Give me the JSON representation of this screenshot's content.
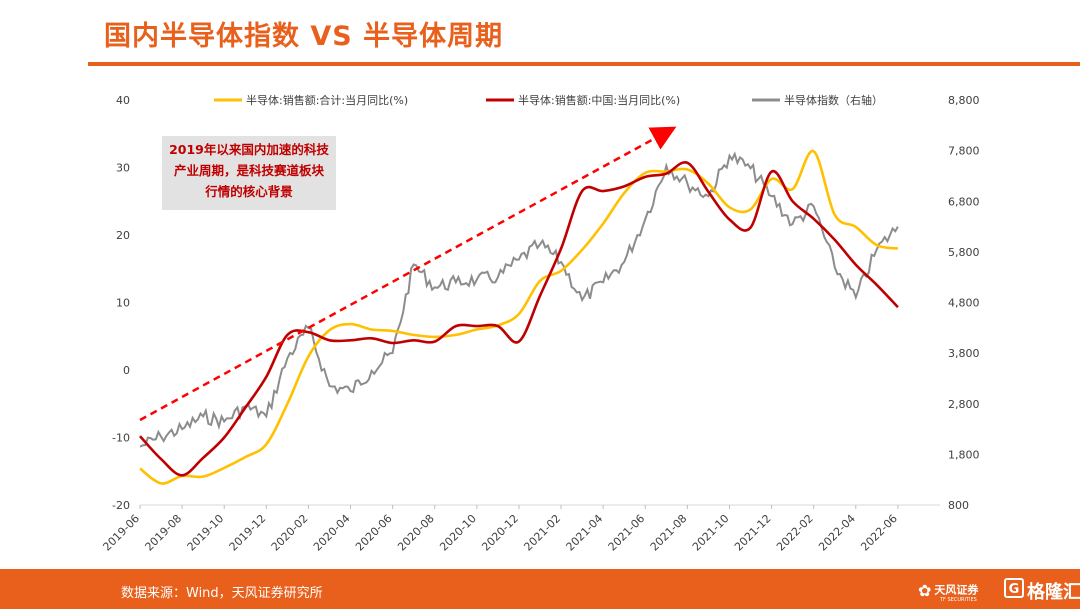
{
  "header": {
    "title": "国内半导体指数 VS 半导体周期"
  },
  "annotation": {
    "lines": [
      "2019年以来国内加速的科技",
      "产业周期，是科技赛道板块",
      "行情的核心背景"
    ]
  },
  "footer": {
    "source": "数据来源：Wind，天风证券研究所",
    "logo_tf": "天风证券",
    "logo_tf_sub": "TF SECURITIES",
    "logo_glh": "格隆汇"
  },
  "colors": {
    "brand": "#e8601c",
    "yellow_series": "#ffc000",
    "red_series": "#c00000",
    "gray_series": "#8c8c8c",
    "arrow": "#ff0000"
  },
  "chart_data": {
    "type": "line",
    "x_ticks": [
      "2019-06",
      "2019-08",
      "2019-10",
      "2019-12",
      "2020-02",
      "2020-04",
      "2020-06",
      "2020-08",
      "2020-10",
      "2020-12",
      "2021-02",
      "2021-04",
      "2021-06",
      "2021-08",
      "2021-10",
      "2021-12",
      "2022-02",
      "2022-04",
      "2022-06"
    ],
    "y_left": {
      "ticks": [
        40,
        30,
        20,
        10,
        0,
        -10,
        -20
      ],
      "range": [
        -20,
        40
      ]
    },
    "y_right": {
      "ticks": [
        "8,800",
        "7,800",
        "6,800",
        "5,800",
        "4,800",
        "3,800",
        "2,800",
        "1,800",
        "800"
      ],
      "range": [
        800,
        8800
      ]
    },
    "legend_position": "top",
    "series": [
      {
        "name": "半导体:销售额:合计:当月同比(%)",
        "axis": "left",
        "color": "#ffc000",
        "points": [
          [
            "2019-06",
            -14.6
          ],
          [
            "2019-07",
            -16.8
          ],
          [
            "2019-08",
            -15.7
          ],
          [
            "2019-09",
            -15.8
          ],
          [
            "2019-10",
            -14.5
          ],
          [
            "2019-11",
            -12.9
          ],
          [
            "2019-12",
            -11.0
          ],
          [
            "2020-01",
            -5.0
          ],
          [
            "2020-02",
            2.0
          ],
          [
            "2020-03",
            5.9
          ],
          [
            "2020-04",
            6.8
          ],
          [
            "2020-05",
            6.0
          ],
          [
            "2020-06",
            5.8
          ],
          [
            "2020-07",
            5.2
          ],
          [
            "2020-08",
            4.9
          ],
          [
            "2020-09",
            5.2
          ],
          [
            "2020-10",
            6.0
          ],
          [
            "2020-11",
            6.6
          ],
          [
            "2020-12",
            8.3
          ],
          [
            "2021-01",
            13.2
          ],
          [
            "2021-02",
            14.7
          ],
          [
            "2021-03",
            17.8
          ],
          [
            "2021-04",
            21.7
          ],
          [
            "2021-05",
            26.2
          ],
          [
            "2021-06",
            29.2
          ],
          [
            "2021-07",
            29.4
          ],
          [
            "2021-08",
            29.7
          ],
          [
            "2021-09",
            27.6
          ],
          [
            "2021-10",
            24.1
          ],
          [
            "2021-11",
            23.8
          ],
          [
            "2021-12",
            28.3
          ],
          [
            "2022-01",
            26.8
          ],
          [
            "2022-02",
            32.4
          ],
          [
            "2022-03",
            23.0
          ],
          [
            "2022-04",
            21.2
          ],
          [
            "2022-05",
            18.5
          ],
          [
            "2022-06",
            18.0
          ]
        ]
      },
      {
        "name": "半导体:销售额:中国:当月同比(%)",
        "axis": "left",
        "color": "#c00000",
        "points": [
          [
            "2019-06",
            -9.8
          ],
          [
            "2019-07",
            -13.2
          ],
          [
            "2019-08",
            -15.6
          ],
          [
            "2019-09",
            -13.0
          ],
          [
            "2019-10",
            -10.0
          ],
          [
            "2019-11",
            -5.6
          ],
          [
            "2019-12",
            -1.0
          ],
          [
            "2020-01",
            5.2
          ],
          [
            "2020-02",
            5.6
          ],
          [
            "2020-03",
            4.4
          ],
          [
            "2020-04",
            4.4
          ],
          [
            "2020-05",
            4.7
          ],
          [
            "2020-06",
            4.0
          ],
          [
            "2020-07",
            4.4
          ],
          [
            "2020-08",
            4.2
          ],
          [
            "2020-09",
            6.5
          ],
          [
            "2020-10",
            6.5
          ],
          [
            "2020-11",
            6.5
          ],
          [
            "2020-12",
            4.2
          ],
          [
            "2021-01",
            11.0
          ],
          [
            "2021-02",
            18.0
          ],
          [
            "2021-03",
            26.5
          ],
          [
            "2021-04",
            26.5
          ],
          [
            "2021-05",
            27.2
          ],
          [
            "2021-06",
            28.6
          ],
          [
            "2021-07",
            29.1
          ],
          [
            "2021-08",
            30.7
          ],
          [
            "2021-09",
            26.4
          ],
          [
            "2021-10",
            22.3
          ],
          [
            "2021-11",
            21.1
          ],
          [
            "2021-12",
            29.4
          ],
          [
            "2022-01",
            25.0
          ],
          [
            "2022-02",
            22.4
          ],
          [
            "2022-03",
            19.3
          ],
          [
            "2022-04",
            15.6
          ],
          [
            "2022-05",
            12.6
          ],
          [
            "2022-06",
            9.3
          ]
        ]
      },
      {
        "name": "半导体指数（右轴）",
        "axis": "right",
        "color": "#8c8c8c",
        "points": [
          [
            "2019-06",
            1950
          ],
          [
            "2019-07",
            2150
          ],
          [
            "2019-08",
            2300
          ],
          [
            "2019-09",
            2550
          ],
          [
            "2019-10",
            2450
          ],
          [
            "2019-11",
            2750
          ],
          [
            "2019-12",
            2550
          ],
          [
            "2020-01",
            3700
          ],
          [
            "2020-02",
            4300
          ],
          [
            "2020-03",
            3150
          ],
          [
            "2020-04",
            3050
          ],
          [
            "2020-05",
            3450
          ],
          [
            "2020-06",
            3800
          ],
          [
            "2020-07",
            5550
          ],
          [
            "2020-08",
            5100
          ],
          [
            "2020-09",
            5200
          ],
          [
            "2020-10",
            5250
          ],
          [
            "2020-11",
            5300
          ],
          [
            "2020-12",
            5650
          ],
          [
            "2021-01",
            5950
          ],
          [
            "2021-02",
            5600
          ],
          [
            "2021-03",
            4850
          ],
          [
            "2021-04",
            5200
          ],
          [
            "2021-05",
            5600
          ],
          [
            "2021-06",
            6450
          ],
          [
            "2021-07",
            7500
          ],
          [
            "2021-08",
            7150
          ],
          [
            "2021-09",
            6900
          ],
          [
            "2021-10",
            7700
          ],
          [
            "2021-11",
            7450
          ],
          [
            "2021-12",
            6900
          ],
          [
            "2022-01",
            6350
          ],
          [
            "2022-02",
            6700
          ],
          [
            "2022-03",
            5500
          ],
          [
            "2022-04",
            4900
          ],
          [
            "2022-05",
            5850
          ],
          [
            "2022-06",
            6300
          ]
        ]
      }
    ]
  }
}
